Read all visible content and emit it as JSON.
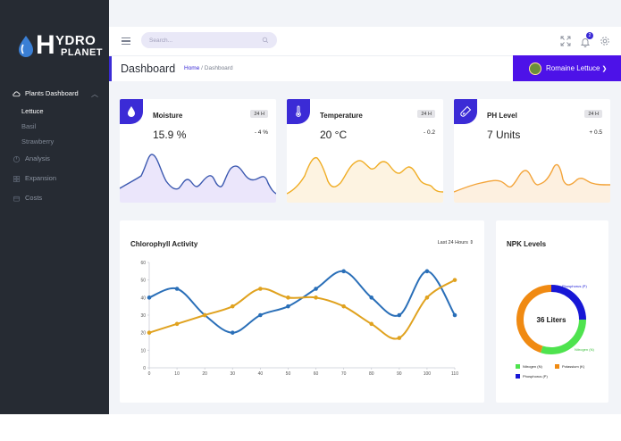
{
  "brand": {
    "letter": "H",
    "line1": "YDRO",
    "line2": "PLANET"
  },
  "sidebar": {
    "items": [
      {
        "label": "Plants Dashboard",
        "icon": "cloud-icon"
      },
      {
        "label": "Analysis",
        "icon": "chart-icon"
      },
      {
        "label": "Expansion",
        "icon": "grid-icon"
      },
      {
        "label": "Costs",
        "icon": "wallet-icon"
      }
    ],
    "sub": [
      "Lettuce",
      "Basil",
      "Strawberry"
    ]
  },
  "topbar": {
    "search_placeholder": "Search...",
    "notification_count": "2"
  },
  "page": {
    "title": "Dashboard",
    "crumb_home": "Home",
    "crumb_sep": "/",
    "crumb_current": "Dashboard",
    "plant": "Romaine Lettuce"
  },
  "stats": [
    {
      "name": "Moisture",
      "period": "24 H",
      "value": "15.9 %",
      "delta": "- 4 %",
      "stroke": "#3c59b0",
      "fill": "#ebe6fb",
      "icon": "water-drop-icon"
    },
    {
      "name": "Temperature",
      "period": "24 H",
      "value": "20 °C",
      "delta": "- 0.2",
      "stroke": "#f0ad25",
      "fill": "#fdf3e1",
      "icon": "thermometer-icon"
    },
    {
      "name": "PH Level",
      "period": "24 H",
      "value": "7 Units",
      "delta": "+ 0.5",
      "stroke": "#f3a43a",
      "fill": "#fdf0e0",
      "icon": "test-tube-icon"
    }
  ],
  "chlorophyll": {
    "title": "Chlorophyll Activity",
    "range": "Last 24 Hours",
    "chart_data": {
      "type": "line",
      "x": [
        0,
        10,
        20,
        30,
        40,
        50,
        60,
        70,
        80,
        90,
        100,
        110
      ],
      "xlim": [
        0,
        110
      ],
      "ylim": [
        0,
        60
      ],
      "yticks": [
        0,
        10,
        20,
        30,
        40,
        50,
        60
      ],
      "series": [
        {
          "values": [
            40,
            45,
            30,
            20,
            30,
            35,
            45,
            55,
            40,
            30,
            55,
            30
          ],
          "color": "#2a6fb8"
        },
        {
          "values": [
            20,
            25,
            30,
            35,
            45,
            40,
            40,
            35,
            25,
            17,
            40,
            50
          ],
          "color": "#e0a21f"
        }
      ]
    }
  },
  "npk": {
    "title": "NPK Levels",
    "center": "36 Liters",
    "chart_data": {
      "type": "pie",
      "slices": [
        {
          "label": "Nitrogen (N)",
          "value": 30,
          "color": "#4ee34e"
        },
        {
          "label": "Potassium (K)",
          "value": 45,
          "color": "#f08a12"
        },
        {
          "label": "Phosphorus (P)",
          "value": 25,
          "color": "#1717d6"
        }
      ],
      "callouts": [
        "Phosphorus (P)",
        "Nitrogen (N)"
      ]
    }
  }
}
